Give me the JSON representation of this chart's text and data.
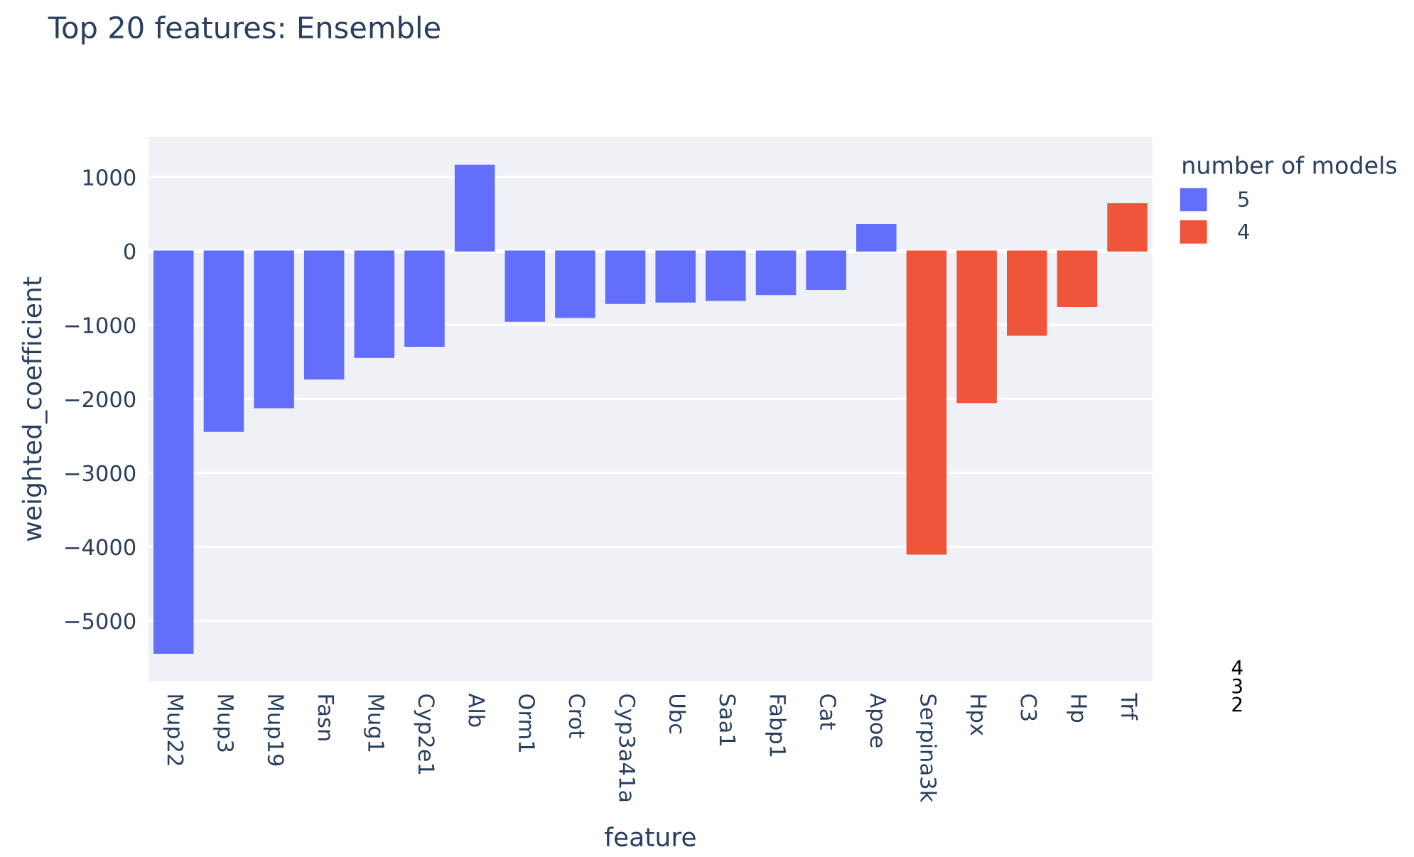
{
  "chart_data": {
    "type": "bar",
    "title": "Top 20 features: Ensemble",
    "xlabel": "feature",
    "ylabel": "weighted_coefficient",
    "legend_title": "number of models",
    "categories": [
      "Mup22",
      "Mup3",
      "Mup19",
      "Fasn",
      "Mug1",
      "Cyp2e1",
      "Alb",
      "Orm1",
      "Crot",
      "Cyp3a41a",
      "Ubc",
      "Saa1",
      "Fabp1",
      "Cat",
      "Apoe",
      "Serpina3k",
      "Hpx",
      "C3",
      "Hp",
      "Trf"
    ],
    "series": [
      {
        "name": "5",
        "color": "#636efa",
        "values": [
          -5440,
          -2440,
          -2120,
          -1730,
          -1440,
          -1290,
          1160,
          -950,
          -900,
          -710,
          -690,
          -670,
          -590,
          -520,
          360,
          null,
          null,
          null,
          null,
          null
        ]
      },
      {
        "name": "4",
        "color": "#ef553b",
        "values": [
          null,
          null,
          null,
          null,
          null,
          null,
          null,
          null,
          null,
          null,
          null,
          null,
          null,
          null,
          null,
          -4100,
          -2050,
          -1140,
          -750,
          640
        ]
      }
    ],
    "ylim": [
      -5820,
      1540
    ],
    "yticks": [
      -5000,
      -4000,
      -3000,
      -2000,
      -1000,
      0,
      1000
    ],
    "grid": "y",
    "legend": "top right",
    "annotations": [
      "4\n3\n2"
    ]
  }
}
